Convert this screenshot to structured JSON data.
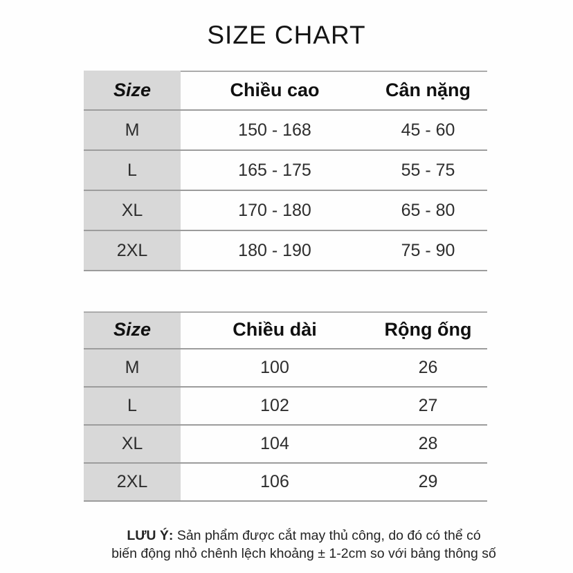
{
  "title": "SIZE CHART",
  "tables": [
    {
      "name": "height-weight-table",
      "columns": [
        "Size",
        "Chiều cao",
        "Cân nặng"
      ],
      "rows": [
        [
          "M",
          "150 - 168",
          "45 - 60"
        ],
        [
          "L",
          "165 - 175",
          "55 - 75"
        ],
        [
          "XL",
          "170 - 180",
          "65 - 80"
        ],
        [
          "2XL",
          "180 - 190",
          "75 - 90"
        ]
      ]
    },
    {
      "name": "length-legwidth-table",
      "columns": [
        "Size",
        "Chiều dài",
        "Rộng ống"
      ],
      "rows": [
        [
          "M",
          "100",
          "26"
        ],
        [
          "L",
          "102",
          "27"
        ],
        [
          "XL",
          "104",
          "28"
        ],
        [
          "2XL",
          "106",
          "29"
        ]
      ]
    }
  ],
  "note": {
    "label": "LƯU Ý:",
    "line1": "Sản phẩm được cắt may thủ công, do đó có thể có",
    "line2": "biến động nhỏ chênh lệch khoảng ± 1-2cm so với bảng thông số"
  },
  "colors": {
    "size_column_bg": "#d8d8d8",
    "divider": "#9c9c9c",
    "text": "#1d1d1d"
  }
}
